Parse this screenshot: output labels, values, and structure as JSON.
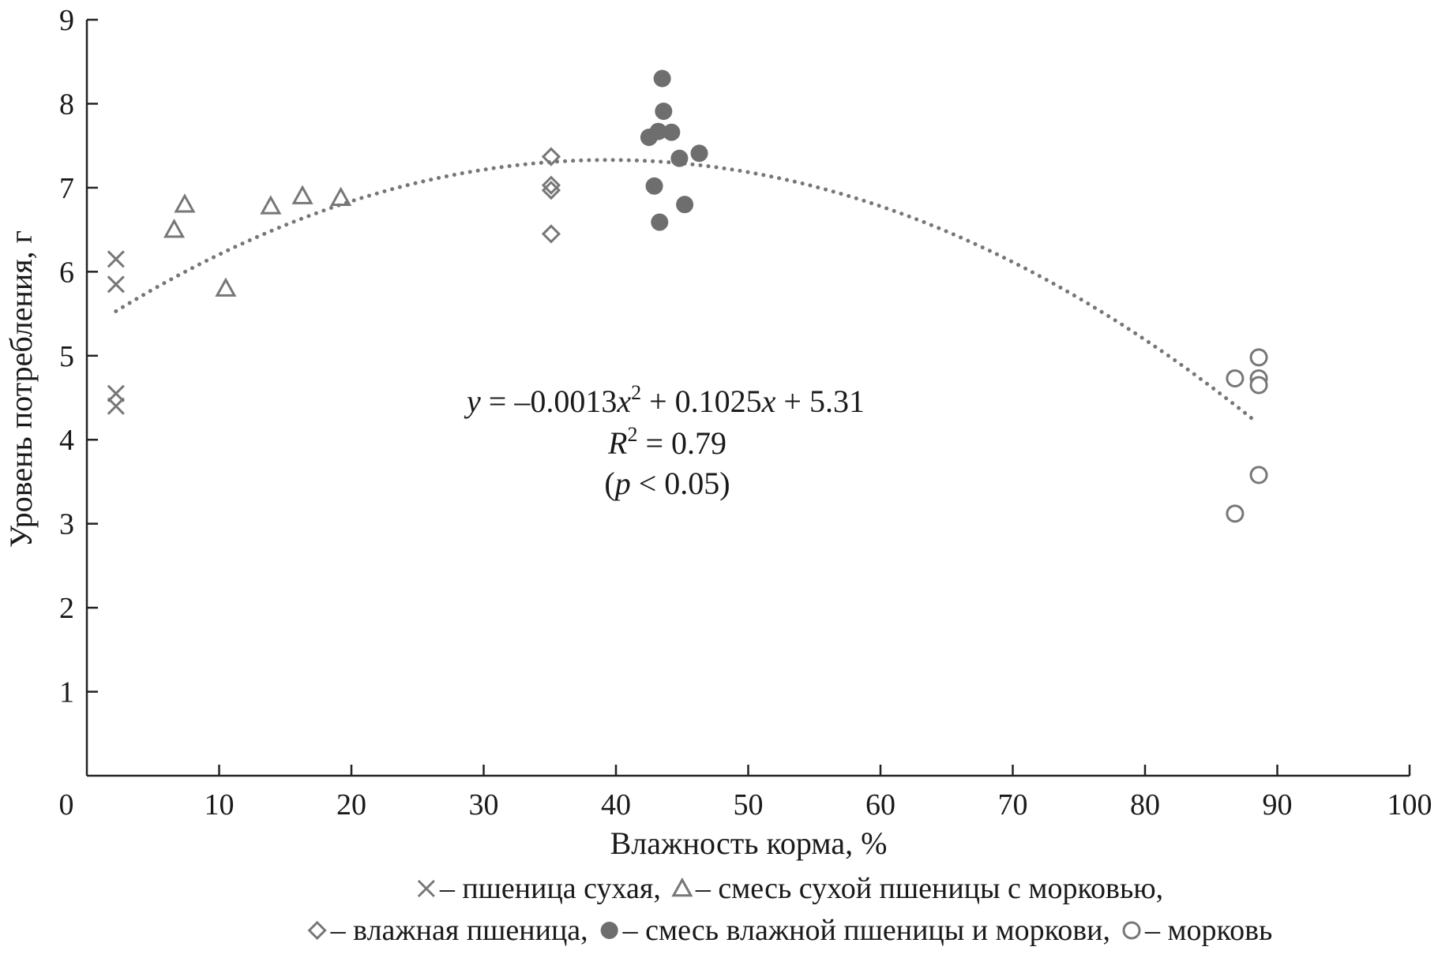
{
  "chart_data": {
    "type": "scatter",
    "title": "",
    "xlabel": "Влажность корма, %",
    "ylabel": "Уровень потребления, г",
    "xlim": [
      0,
      100
    ],
    "ylim": [
      0,
      9
    ],
    "x_ticks": [
      "0",
      "10",
      "20",
      "30",
      "40",
      "50",
      "60",
      "70",
      "80",
      "90",
      "100"
    ],
    "y_ticks": [
      "1",
      "2",
      "3",
      "4",
      "5",
      "6",
      "7",
      "8",
      "9"
    ],
    "grid": false,
    "series": [
      {
        "name": "пшеница сухая",
        "marker": "x-mark",
        "color": "#777777",
        "points": [
          [
            2.2,
            6.15
          ],
          [
            2.2,
            5.85
          ],
          [
            2.2,
            4.55
          ],
          [
            2.2,
            4.4
          ]
        ]
      },
      {
        "name": "смесь сухой пшеницы с морковью",
        "marker": "triangle-open",
        "color": "#777777",
        "points": [
          [
            6.6,
            6.5
          ],
          [
            7.4,
            6.8
          ],
          [
            10.5,
            5.8
          ],
          [
            13.9,
            6.78
          ],
          [
            16.3,
            6.9
          ],
          [
            19.2,
            6.88
          ]
        ]
      },
      {
        "name": "влажная пшеница",
        "marker": "diamond-open",
        "color": "#777777",
        "points": [
          [
            35.1,
            7.37
          ],
          [
            35.1,
            7.03
          ],
          [
            35.1,
            6.97
          ],
          [
            35.1,
            6.45
          ]
        ]
      },
      {
        "name": "смесь влажной пшеницы и моркови",
        "marker": "circle-filled",
        "color": "#6e6e6e",
        "points": [
          [
            43.5,
            8.3
          ],
          [
            43.6,
            7.91
          ],
          [
            42.5,
            7.6
          ],
          [
            43.2,
            7.67
          ],
          [
            44.2,
            7.66
          ],
          [
            44.8,
            7.35
          ],
          [
            46.3,
            7.41
          ],
          [
            42.9,
            7.02
          ],
          [
            43.3,
            6.59
          ],
          [
            45.2,
            6.8
          ]
        ]
      },
      {
        "name": "морковь",
        "marker": "circle-open",
        "color": "#777777",
        "points": [
          [
            88.6,
            4.98
          ],
          [
            86.8,
            4.73
          ],
          [
            88.6,
            4.73
          ],
          [
            88.6,
            4.65
          ],
          [
            88.6,
            3.58
          ],
          [
            86.8,
            3.12
          ]
        ]
      }
    ],
    "trendline": {
      "type": "polynomial",
      "a": -0.0013,
      "b": 0.1025,
      "c": 5.31,
      "x_range": [
        2.2,
        88.6
      ],
      "style": "dotted",
      "color": "#777777"
    },
    "annotation": {
      "equation": [
        "y",
        " = –0.0013",
        "x",
        "2",
        " + 0.1025",
        "x",
        " + 5.31"
      ],
      "r_squared": [
        "R",
        "2",
        " = 0.79"
      ],
      "p_value": [
        "(",
        "p",
        " < 0.05)"
      ]
    },
    "legend": {
      "placement": "bottom",
      "lines": [
        [
          {
            "marker": "x-mark",
            "text": "– пшеница сухая,"
          },
          {
            "marker": "triangle-open",
            "text": "– смесь сухой пшеницы с морковью,"
          }
        ],
        [
          {
            "marker": "diamond-open",
            "text": "– влажная пшеница,"
          },
          {
            "marker": "circle-filled",
            "text": "– смесь влажной пшеницы и моркови,"
          },
          {
            "marker": "circle-open",
            "text": "– морковь"
          }
        ]
      ]
    }
  }
}
